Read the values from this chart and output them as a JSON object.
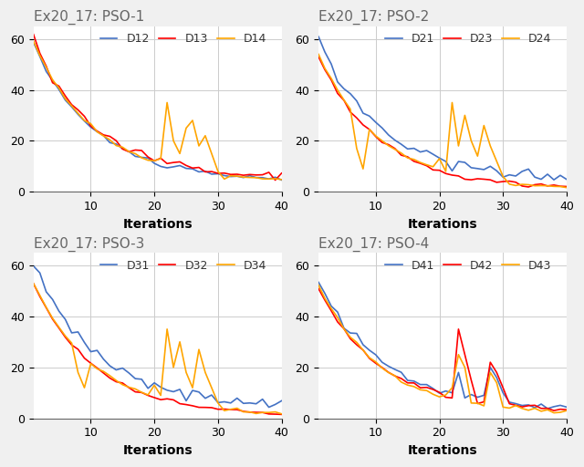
{
  "titles": [
    "Ex20_17: PSO-1",
    "Ex20_17: PSO-2",
    "Ex20_17: PSO-3",
    "Ex20_17: PSO-4"
  ],
  "legend_labels": [
    [
      "D12",
      "D13",
      "D14"
    ],
    [
      "D21",
      "D23",
      "D24"
    ],
    [
      "D31",
      "D32",
      "D34"
    ],
    [
      "D41",
      "D42",
      "D43"
    ]
  ],
  "colors": [
    "#4472C4",
    "#FF0000",
    "#FFA500"
  ],
  "xlabel": "Iterations",
  "xlim": [
    1,
    40
  ],
  "ylim": [
    0,
    65
  ],
  "yticks": [
    0,
    20,
    40,
    60
  ],
  "xticks": [
    10,
    20,
    30,
    40
  ],
  "background_color": "#ffffff",
  "grid_color": "#cccccc",
  "title_color": "#666666",
  "figsize": [
    6.4,
    5.12
  ],
  "dpi": 100
}
